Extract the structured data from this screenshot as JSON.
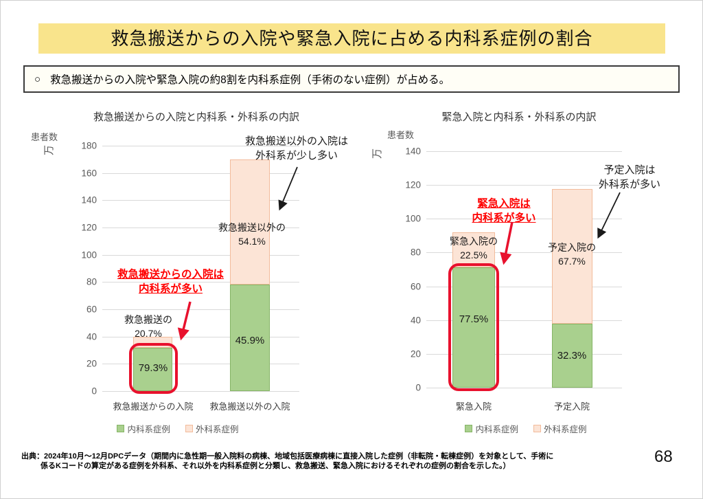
{
  "slide": {
    "title": "救急搬送からの入院や緊急入院に占める内科系症例の割合",
    "summary_bullet": "○",
    "summary": "救急搬送からの入院や緊急入院の約8割を内科系症例（手術のない症例）が占める。",
    "source_line1": "出典：2024年10月～12月DPCデータ（期間内に急性期一般入院料の病棟、地域包括医療病棟に直接入院した症例（非転院・転棟症例）を対象として、手術に",
    "source_line2": "係るKコードの算定がある症例を外科系、それ以外を内科系症例と分類し、救急搬送、緊急入院におけるそれぞれの症例の割合を示した。）",
    "page_number": "68"
  },
  "colors": {
    "title_bg": "#F9E48C",
    "naika_fill": "#A9D08E",
    "naika_border": "#85B465",
    "geka_fill": "#FCE4D6",
    "geka_border": "#F2BB9B",
    "highlight_red": "#E8112D",
    "grid": "#D9D9D9"
  },
  "chart_data": [
    {
      "type": "bar",
      "stacked": true,
      "title": "救急搬送からの入院と内科系・外科系の内訳",
      "ylabel": "患者数",
      "ylabel_unit": "万",
      "ylim": [
        0,
        180
      ],
      "ytick_step": 20,
      "grid": true,
      "legend_position": "bottom",
      "categories": [
        "救急搬送からの入院",
        "救急搬送以外の入院"
      ],
      "series": [
        {
          "name": "内科系症例",
          "values": [
            31.7,
            78.0
          ]
        },
        {
          "name": "外科系症例",
          "values": [
            8.3,
            92.0
          ]
        }
      ],
      "segment_labels": {
        "naika": [
          "79.3%",
          "45.9%"
        ],
        "geka": [
          "救急搬送の\n20.7%",
          "救急搬送以外の\n54.1%"
        ]
      },
      "annotations": {
        "red_note": "救急搬送からの入院は\n内科系が多い",
        "black_note": "救急搬送以外の入院は\n外科系が少し多い"
      }
    },
    {
      "type": "bar",
      "stacked": true,
      "title": "緊急入院と内科系・外科系の内訳",
      "ylabel": "患者数",
      "ylabel_unit": "万",
      "ylim": [
        0,
        140
      ],
      "ytick_step": 20,
      "grid": true,
      "legend_position": "bottom",
      "categories": [
        "緊急入院",
        "予定入院"
      ],
      "series": [
        {
          "name": "内科系症例",
          "values": [
            71.3,
            38.0
          ]
        },
        {
          "name": "外科系症例",
          "values": [
            20.7,
            79.5
          ]
        }
      ],
      "segment_labels": {
        "naika": [
          "77.5%",
          "32.3%"
        ],
        "geka": [
          "緊急入院の\n22.5%",
          "予定入院の\n67.7%"
        ]
      },
      "annotations": {
        "red_note": "緊急入院は\n内科系が多い",
        "black_note": "予定入院は\n外科系が多い"
      }
    }
  ]
}
